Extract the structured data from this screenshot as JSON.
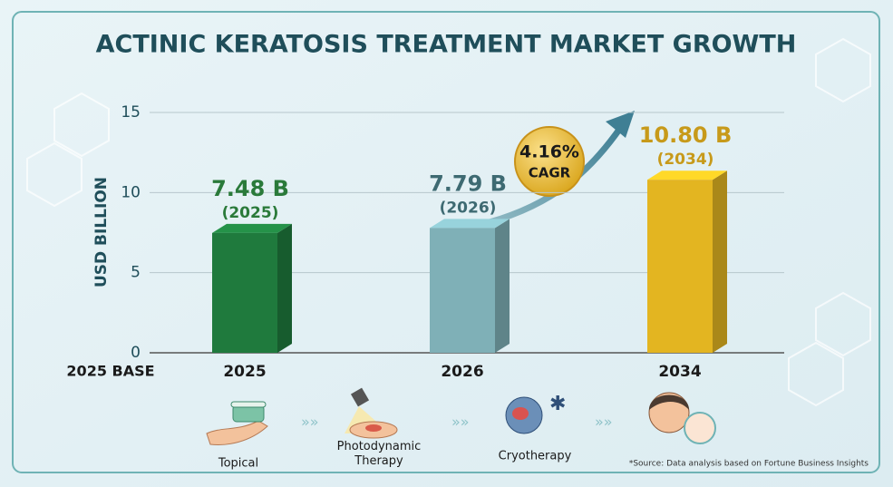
{
  "chart_data": {
    "type": "bar",
    "title": "ACTINIC KERATOSIS TREATMENT MARKET GROWTH",
    "y_label": "USD BILLION",
    "base_label": "2025 BASE",
    "categories": [
      "2025",
      "2026",
      "2034"
    ],
    "values": [
      7.48,
      7.79,
      10.8
    ],
    "value_labels": [
      "7.48 B",
      "7.79 B",
      "10.80 B"
    ],
    "year_labels": [
      "(2025)",
      "(2026)",
      "(2034)"
    ],
    "colors": [
      "#1f7a3d",
      "#7fb0b7",
      "#e3b521"
    ],
    "label_colors": [
      "#2a7a3a",
      "#3e6a72",
      "#c79a1a"
    ],
    "ylim": [
      0,
      15
    ],
    "yticks": [
      0,
      5,
      10,
      15
    ],
    "grid": true,
    "cagr": {
      "value": "4.16%",
      "label": "CAGR"
    },
    "treatments": [
      "Topical",
      "Photodynamic Therapy",
      "Cryotherapy"
    ],
    "source": "*Source: Data analysis based on Fortune Business Insights"
  }
}
